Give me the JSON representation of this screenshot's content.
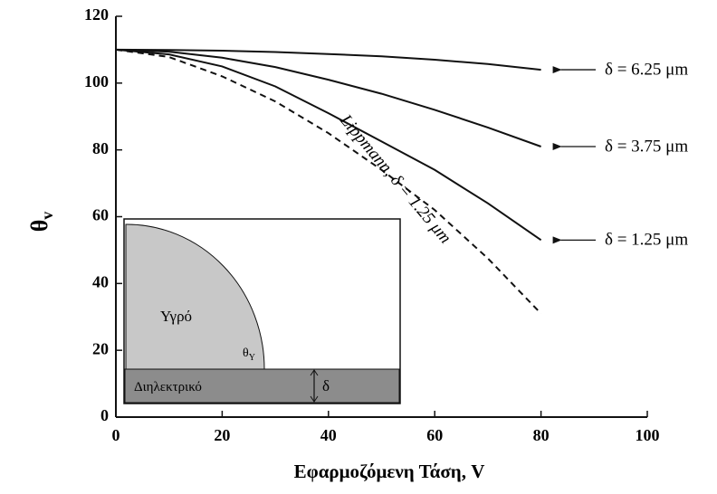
{
  "chart_data": {
    "type": "line",
    "xlabel": "Εφαρμοζόμενη Τάση, V",
    "ylabel": {
      "main": "θ",
      "sub": "v"
    },
    "x": [
      0,
      10,
      20,
      30,
      40,
      50,
      60,
      70,
      80
    ],
    "series": [
      {
        "name": "δ = 6.25 μm",
        "color": "#111111",
        "dash": false,
        "values": [
          110,
          109.9,
          109.7,
          109.3,
          108.7,
          108,
          107,
          105.7,
          104
        ]
      },
      {
        "name": "δ = 3.75 μm",
        "color": "#111111",
        "dash": false,
        "values": [
          110,
          109.4,
          107.6,
          104.8,
          101,
          96.8,
          92,
          86.7,
          81
        ]
      },
      {
        "name": "δ = 1.25 μm",
        "color": "#111111",
        "dash": false,
        "values": [
          110,
          108.6,
          105,
          99,
          91,
          82.5,
          74,
          64,
          53
        ]
      },
      {
        "name": "Lippmann, δ = 1.25 μm",
        "color": "#111111",
        "dash": true,
        "values": [
          110,
          107.8,
          102,
          94.5,
          85,
          74,
          62,
          47.5,
          31
        ]
      }
    ],
    "xlim": [
      0,
      100
    ],
    "xticks": [
      0,
      20,
      40,
      60,
      80,
      100
    ],
    "ylim": [
      0,
      120
    ],
    "yticks": [
      0,
      20,
      40,
      60,
      80,
      100,
      120
    ],
    "inset": {
      "liquid": "Υγρό",
      "dielectric": "Διηλεκτρικό",
      "angle": "θ",
      "angle_sub": "Y",
      "thickness": "δ"
    }
  }
}
